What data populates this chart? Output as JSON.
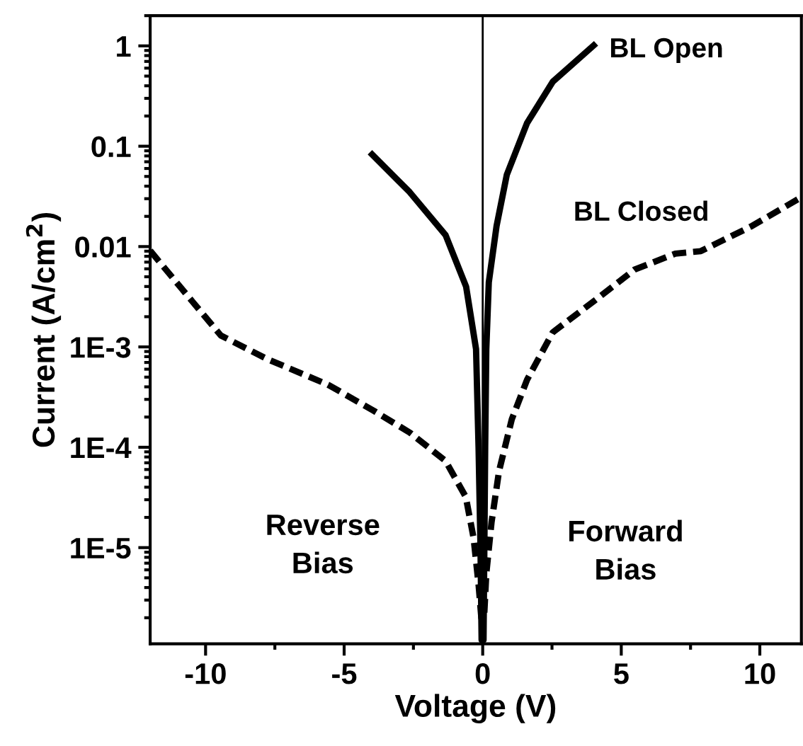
{
  "chart_data": {
    "type": "line",
    "xlabel": "Voltage (V)",
    "ylabel": "Current (A/cm$^{2}$)",
    "log": "y",
    "xlim": [
      -12,
      11.5
    ],
    "xticks": [
      -10,
      -5,
      0,
      5,
      10
    ],
    "ylim": [
      1.1e-06,
      2
    ],
    "yticks": [
      1,
      0.1,
      0.01,
      {
        "value": 0.001,
        "label": "1E-3"
      },
      {
        "value": 0.0001,
        "label": "1E-4"
      },
      {
        "value": 1e-05,
        "label": "1E-5"
      }
    ],
    "grid": false,
    "legend": false,
    "marker": "none",
    "ref_lines": [
      {
        "axis": "x",
        "value": 0,
        "color": "#000000"
      }
    ],
    "annotations": [
      "Reverse\nBias",
      "Forward\nBias"
    ],
    "series": [
      {
        "name": "BL Open",
        "color": "#000000",
        "line_style": "solid",
        "x": [
          -4.07,
          -2.64,
          -1.34,
          -0.6,
          -0.24,
          -0.15,
          -0.08,
          -0.04,
          0.03,
          0.06,
          0.09,
          0.13,
          0.22,
          0.5,
          0.87,
          1.6,
          2.53,
          4.09
        ],
        "values": [
          0.087,
          0.035,
          0.013,
          0.004,
          0.00095,
          0.0001,
          1e-05,
          1.2e-06,
          1.2e-06,
          1e-05,
          0.0001,
          0.00095,
          0.0044,
          0.016,
          0.052,
          0.17,
          0.44,
          1.06
        ]
      },
      {
        "name": "BL Closed",
        "color": "#000000",
        "line_style": "dashed",
        "x": [
          -12,
          -10.46,
          -9.45,
          -7.79,
          -5.58,
          -3.92,
          -2.63,
          -1.34,
          -0.61,
          -0.33,
          -0.15,
          -0.05,
          0.05,
          0.13,
          0.32,
          0.59,
          1.05,
          1.6,
          2.53,
          4.18,
          5.48,
          6.95,
          7.87,
          8.79,
          9.71,
          11.5
        ],
        "values": [
          0.0091,
          0.0028,
          0.0013,
          0.00076,
          0.00042,
          0.00023,
          0.00014,
          7.3e-05,
          3.2e-05,
          1.25e-05,
          4.3e-06,
          2e-06,
          2e-06,
          5.5e-06,
          1.8e-05,
          5.8e-05,
          0.00019,
          0.00047,
          0.0014,
          0.0031,
          0.0059,
          0.0085,
          0.009,
          0.012,
          0.016,
          0.031
        ]
      }
    ]
  }
}
